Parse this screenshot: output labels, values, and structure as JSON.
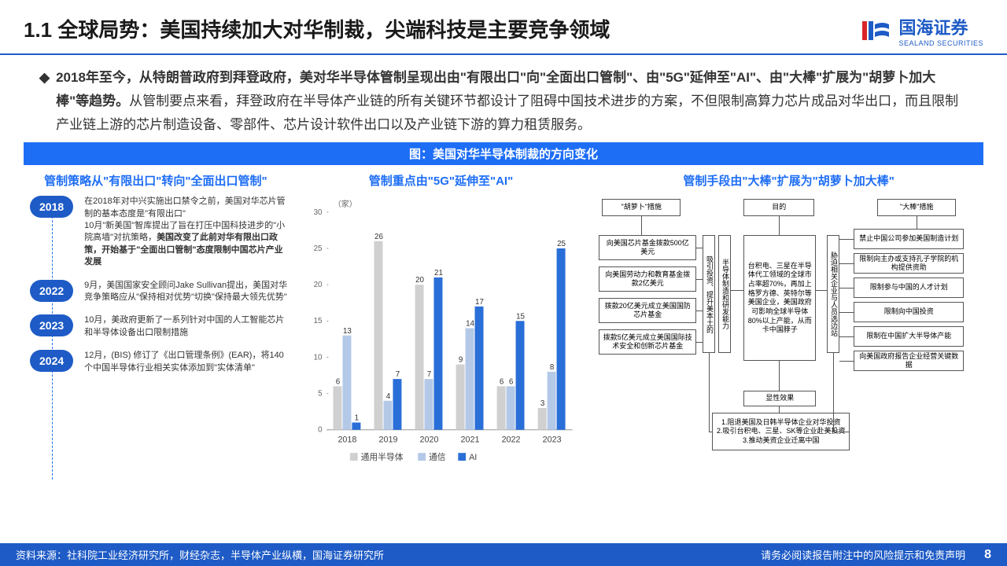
{
  "header": {
    "title": "1.1 全球局势：美国持续加大对华制裁，尖端科技是主要竞争领域",
    "logo_cn": "国海证券",
    "logo_en": "SEALAND SECURITIES"
  },
  "body": {
    "bullet": "◆",
    "bold_part": "2018年至今，从特朗普政府到拜登政府，美对华半导体管制呈现出由\"有限出口\"向\"全面出口管制\"、由\"5G\"延伸至\"AI\"、由\"大棒\"扩展为\"胡萝卜加大棒\"等趋势。",
    "rest": "从管制要点来看，拜登政府在半导体产业链的所有关键环节都设计了阻碍中国技术进步的方案，不但限制高算力芯片成品对华出口，而且限制产业链上游的芯片制造设备、零部件、芯片设计软件出口以及产业链下游的算力租赁服务。"
  },
  "fig_title": "图：美国对华半导体制裁的方向变化",
  "col1": {
    "title": "管制策略从\"有限出口\"转向\"全面出口管制\"",
    "timeline": [
      {
        "year": "2018",
        "text1": "在2018年对中兴实施出口禁令之前，美国对华芯片管制的基本态度是\"有限出口\"",
        "text2_pre": "10月\"新美国\"智库提出了旨在打压中国科技进步的\"小院高墙\"对抗策略，",
        "text2_bold": "美国改变了此前对华有限出口政策，开始基于\"全面出口管制\"态度限制中国芯片产业发展"
      },
      {
        "year": "2022",
        "text1": "9月，美国国家安全顾问Jake Sullivan提出，美国对华竞争策略应从\"保持相对优势\"切换\"保持最大领先优势\""
      },
      {
        "year": "2023",
        "text1": "10月，美政府更新了一系列针对中国的人工智能芯片和半导体设备出口限制措施"
      },
      {
        "year": "2024",
        "text1": "12月，(BIS) 修订了《出口管理条例》(EAR)，将140个中国半导体行业相关实体添加到\"实体清单\""
      }
    ]
  },
  "col2": {
    "title": "管制重点由\"5G\"延伸至\"AI\"",
    "unit": "（家）",
    "chart": {
      "type": "bar",
      "categories": [
        "2018",
        "2019",
        "2020",
        "2021",
        "2022",
        "2023"
      ],
      "series": [
        {
          "name": "通用半导体",
          "color": "#d0d0d0",
          "values": [
            6,
            26,
            20,
            9,
            6,
            3
          ]
        },
        {
          "name": "通信",
          "color": "#b4c9e8",
          "values": [
            13,
            4,
            7,
            14,
            6,
            8
          ]
        },
        {
          "name": "AI",
          "color": "#2a6ed8",
          "values": [
            1,
            7,
            21,
            17,
            15,
            25
          ]
        }
      ],
      "ylim": [
        0,
        30
      ],
      "ytick_step": 5,
      "legend": [
        "通用半导体",
        "通信",
        "AI"
      ],
      "bar_width": 0.23,
      "label_fontsize": 10
    }
  },
  "col3": {
    "title": "管制手段由\"大棒\"扩展为\"胡萝卜加大棒\"",
    "left_head": "\"胡萝卜\"措施",
    "mid_head": "目的",
    "right_head": "\"大棒\"措施",
    "left_items": [
      "向美国芯片基金拨款500亿美元",
      "向美国劳动力和教育基金拨款2亿美元",
      "拨款20亿美元成立美国国防芯片基金",
      "拨款5亿美元成立美国国际技术安全和创新芯片基金"
    ],
    "left_label": "吸引投资、提升美本土的",
    "left_label2": "半导体制造和研发能力",
    "mid_text": "台积电、三星在半导体代工领域的全球市占率超70%，再加上格罗方德、英特尔等美国企业，美国政府可影响全球半导体80%以上产能，从而卡中国脖子",
    "right_label": "胁迫相关企业与人员选边站",
    "right_items": [
      "禁止中国公司参加美国制造计划",
      "限制向主办或支持孔子学院的机构提供资助",
      "限制参与中国的人才计划",
      "限制向中国投资",
      "限制在中国扩大半导体产能",
      "向美国政府报告企业经营关键数据"
    ],
    "bottom_head": "显性效果",
    "bottom_text": "1.阻退美国及日韩半导体企业对华投资\n2.吸引台积电、三星、SK等企业赴美投资\n3.推动美资企业迁离中国"
  },
  "footer": {
    "source": "资料来源：社科院工业经济研究所，财经杂志，半导体产业纵横，国海证券研究所",
    "disclaimer": "请务必阅读报告附注中的风险提示和免责声明",
    "page": "8"
  }
}
